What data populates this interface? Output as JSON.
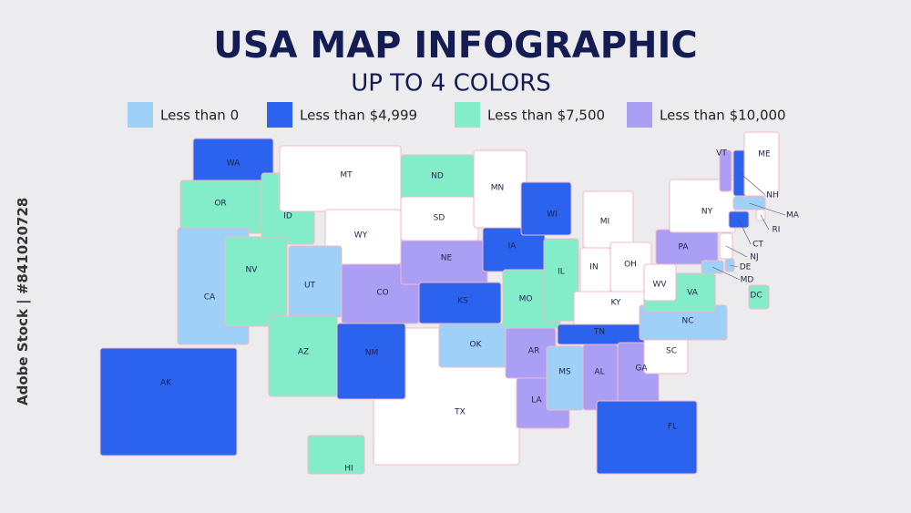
{
  "header": {
    "title": "USA MAP INFOGRAPHIC",
    "subtitle": "UP TO 4 COLORS"
  },
  "legend": [
    {
      "label": "Less than 0",
      "color": "#9fd0f7"
    },
    {
      "label": "Less than $4,999",
      "color": "#2b63ef"
    },
    {
      "label": "Less than $7,500",
      "color": "#83ecc9"
    },
    {
      "label": "Less than $10,000",
      "color": "#ab9ff5"
    }
  ],
  "map": {
    "unassigned_color": "#ffffff",
    "border_color": "#f2b8c6",
    "states": [
      {
        "label": "TX",
        "group": null
      },
      {
        "label": "WA",
        "group": 1
      },
      {
        "label": "OR",
        "group": 2
      },
      {
        "label": "CA",
        "group": 0
      },
      {
        "label": "ID",
        "group": 2
      },
      {
        "label": "NV",
        "group": 2
      },
      {
        "label": "MT",
        "group": null
      },
      {
        "label": "WY",
        "group": null
      },
      {
        "label": "UT",
        "group": 0
      },
      {
        "label": "AZ",
        "group": 2
      },
      {
        "label": "CO",
        "group": 3
      },
      {
        "label": "NM",
        "group": 1
      },
      {
        "label": "ND",
        "group": 2
      },
      {
        "label": "SD",
        "group": null
      },
      {
        "label": "NE",
        "group": 3
      },
      {
        "label": "KS",
        "group": 1
      },
      {
        "label": "OK",
        "group": 0
      },
      {
        "label": "MN",
        "group": null
      },
      {
        "label": "IA",
        "group": 1
      },
      {
        "label": "MO",
        "group": 2
      },
      {
        "label": "AR",
        "group": 3
      },
      {
        "label": "LA",
        "group": 3
      },
      {
        "label": "WI",
        "group": 1
      },
      {
        "label": "IL",
        "group": 2
      },
      {
        "label": "MI",
        "group": null
      },
      {
        "label": "IN",
        "group": null
      },
      {
        "label": "OH",
        "group": null
      },
      {
        "label": "KY",
        "group": null
      },
      {
        "label": "TN",
        "group": 1
      },
      {
        "label": "MS",
        "group": 0
      },
      {
        "label": "AL",
        "group": 3
      },
      {
        "label": "GA",
        "group": 3
      },
      {
        "label": "FL",
        "group": 1
      },
      {
        "label": "SC",
        "group": null
      },
      {
        "label": "NC",
        "group": 0
      },
      {
        "label": "VA",
        "group": 2
      },
      {
        "label": "WV",
        "group": null
      },
      {
        "label": "PA",
        "group": 3
      },
      {
        "label": "NY",
        "group": null
      },
      {
        "label": "VT",
        "group": 3
      },
      {
        "label": "NH",
        "group": 1
      },
      {
        "label": "ME",
        "group": null
      },
      {
        "label": "MA",
        "group": 0
      },
      {
        "label": "RI",
        "group": null
      },
      {
        "label": "CT",
        "group": 1
      },
      {
        "label": "NJ",
        "group": null
      },
      {
        "label": "DE",
        "group": 0
      },
      {
        "label": "MD",
        "group": 0
      },
      {
        "label": "DC",
        "group": 2
      },
      {
        "label": "HI",
        "group": 2
      },
      {
        "label": "AK",
        "group": 1
      }
    ]
  },
  "watermark": "Adobe Stock | #841020728"
}
